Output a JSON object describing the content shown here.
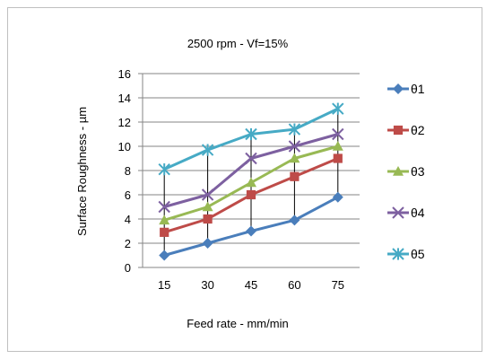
{
  "chart_data": {
    "type": "line",
    "title": "2500 rpm - Vf=15%",
    "xlabel": "Feed rate - mm/min",
    "ylabel": "Surface Roughness - µm",
    "categories": [
      "15",
      "30",
      "45",
      "60",
      "75"
    ],
    "ylim": [
      0,
      16
    ],
    "yticks": [
      0,
      2,
      4,
      6,
      8,
      10,
      12,
      14,
      16
    ],
    "grid": "horizontal",
    "legend_position": "right",
    "series": [
      {
        "name": "θ1",
        "values": [
          1.0,
          2.0,
          3.0,
          3.9,
          5.8
        ],
        "color": "#4a7ebb",
        "marker": "diamond"
      },
      {
        "name": "θ2",
        "values": [
          2.9,
          4.0,
          6.0,
          7.5,
          9.0
        ],
        "color": "#be4b48",
        "marker": "square"
      },
      {
        "name": "θ3",
        "values": [
          3.9,
          5.0,
          7.0,
          9.0,
          10.0
        ],
        "color": "#98b954",
        "marker": "triangle"
      },
      {
        "name": "θ4",
        "values": [
          5.0,
          6.0,
          9.0,
          10.0,
          11.0
        ],
        "color": "#7d60a0",
        "marker": "x"
      },
      {
        "name": "θ5",
        "values": [
          8.1,
          9.7,
          11.0,
          11.4,
          13.1
        ],
        "color": "#46aac5",
        "marker": "star"
      }
    ],
    "drop_lines": true
  }
}
